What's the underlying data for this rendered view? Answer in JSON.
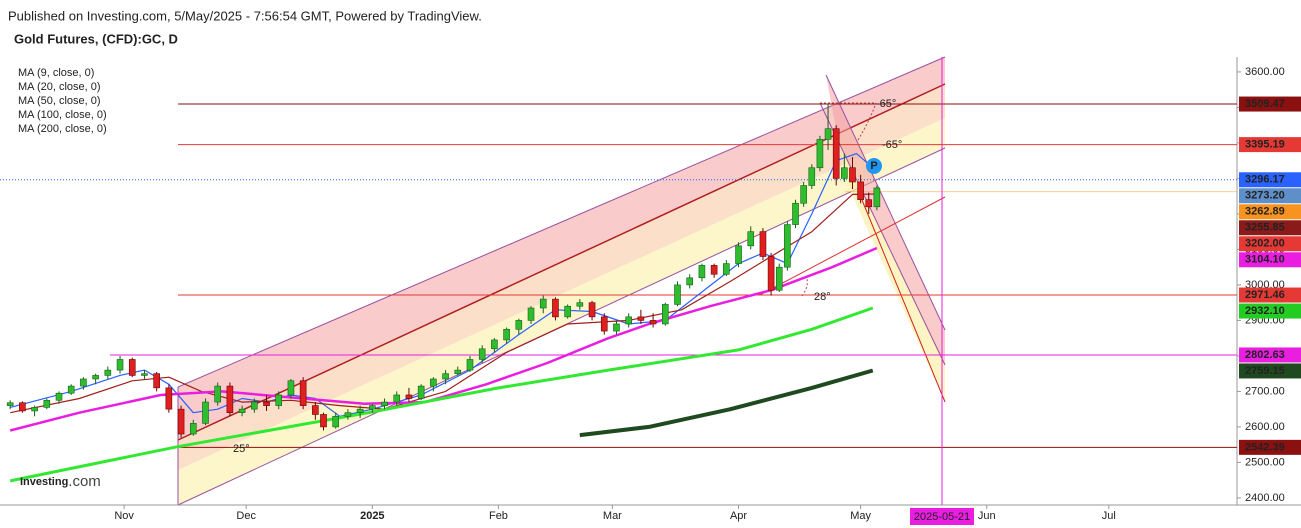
{
  "header": {
    "published": "Published on Investing.com, 5/May/2025 - 7:56:54 GMT, Powered by TradingView.",
    "instrument": "Gold Futures, (CFD):GC, D"
  },
  "chart_data": {
    "type": "candlestick",
    "xlim": [
      0.5,
      304.5
    ],
    "xticks": [
      {
        "value": 31,
        "label": "Nov"
      },
      {
        "value": 61,
        "label": "Dec"
      },
      {
        "value": 92,
        "label": "2025"
      },
      {
        "value": 123,
        "label": "Feb"
      },
      {
        "value": 151,
        "label": "Mar"
      },
      {
        "value": 182,
        "label": "Apr"
      },
      {
        "value": 212,
        "label": "May"
      },
      {
        "value": 243,
        "label": "Jun"
      },
      {
        "value": 273,
        "label": "Jul"
      }
    ],
    "ylim": [
      2380,
      3642
    ],
    "yticks": [
      {
        "value": 2400,
        "label": "2400.00"
      },
      {
        "value": 2500,
        "label": "2500.00"
      },
      {
        "value": 2600,
        "label": "2600.00"
      },
      {
        "value": 2700,
        "label": "2700.00"
      },
      {
        "value": 2800,
        "label": "2800.00"
      },
      {
        "value": 2900,
        "label": "2900.00"
      },
      {
        "value": 3000,
        "label": "3000.00"
      },
      {
        "value": 3100,
        "label": "3100.00"
      },
      {
        "value": 3200,
        "label": "3200.00"
      },
      {
        "value": 3300,
        "label": "3300.00"
      },
      {
        "value": 3400,
        "label": "3400.00"
      },
      {
        "value": 3500,
        "label": "3500.00"
      },
      {
        "value": 3600,
        "label": "3600.00"
      }
    ],
    "up_color": "#2ebd2e",
    "down_color": "#e02020",
    "candles": {
      "x": [
        3,
        6,
        9,
        12,
        15,
        18,
        21,
        24,
        27,
        30,
        33,
        36,
        39,
        42,
        45,
        48,
        51,
        54,
        57,
        60,
        63,
        66,
        69,
        72,
        75,
        78,
        80,
        83,
        86,
        89,
        92,
        95,
        98,
        101,
        104,
        107,
        110,
        113,
        116,
        119,
        122,
        125,
        128,
        131,
        134,
        137,
        140,
        143,
        146,
        149,
        152,
        155,
        158,
        161,
        164,
        167,
        170,
        173,
        176,
        179,
        182,
        185,
        188,
        190,
        192,
        194,
        196,
        198,
        200,
        202,
        204,
        206,
        208,
        210,
        212,
        214,
        216
      ],
      "open": [
        2660,
        2668,
        2645,
        2655,
        2675,
        2695,
        2715,
        2735,
        2745,
        2760,
        2790,
        2745,
        2750,
        2710,
        2650,
        2580,
        2610,
        2670,
        2715,
        2640,
        2650,
        2670,
        2660,
        2690,
        2730,
        2660,
        2635,
        2600,
        2630,
        2640,
        2650,
        2660,
        2670,
        2690,
        2680,
        2715,
        2735,
        2750,
        2760,
        2790,
        2820,
        2845,
        2875,
        2900,
        2935,
        2960,
        2910,
        2940,
        2950,
        2910,
        2870,
        2890,
        2910,
        2900,
        2890,
        2945,
        3000,
        3020,
        3055,
        3030,
        3060,
        3110,
        3150,
        3080,
        2985,
        3050,
        3170,
        3230,
        3280,
        3330,
        3410,
        3440,
        3300,
        3330,
        3290,
        3240,
        3220
      ],
      "high": [
        2675,
        2672,
        2660,
        2680,
        2700,
        2720,
        2740,
        2750,
        2770,
        2800,
        2795,
        2760,
        2755,
        2720,
        2660,
        2620,
        2680,
        2725,
        2725,
        2660,
        2680,
        2690,
        2700,
        2735,
        2740,
        2670,
        2640,
        2640,
        2650,
        2660,
        2665,
        2680,
        2700,
        2710,
        2720,
        2740,
        2760,
        2770,
        2800,
        2830,
        2850,
        2880,
        2905,
        2940,
        2970,
        2965,
        2945,
        2960,
        2955,
        2920,
        2900,
        2920,
        2930,
        2920,
        2950,
        3010,
        3030,
        3060,
        3060,
        3070,
        3120,
        3165,
        3160,
        3090,
        3060,
        3180,
        3240,
        3290,
        3340,
        3420,
        3509,
        3450,
        3370,
        3360,
        3310,
        3260,
        3280
      ],
      "low": [
        2650,
        2640,
        2630,
        2650,
        2665,
        2690,
        2705,
        2720,
        2735,
        2750,
        2740,
        2735,
        2700,
        2640,
        2570,
        2575,
        2605,
        2660,
        2630,
        2630,
        2640,
        2645,
        2650,
        2680,
        2650,
        2620,
        2590,
        2595,
        2620,
        2625,
        2640,
        2650,
        2660,
        2670,
        2675,
        2700,
        2720,
        2745,
        2755,
        2780,
        2810,
        2835,
        2860,
        2890,
        2920,
        2900,
        2905,
        2930,
        2900,
        2860,
        2860,
        2880,
        2890,
        2880,
        2885,
        2940,
        2990,
        3010,
        3020,
        3025,
        3050,
        3100,
        3070,
        2970,
        2980,
        3040,
        3160,
        3220,
        3270,
        3320,
        3380,
        3280,
        3290,
        3270,
        3230,
        3200,
        3210
      ],
      "close": [
        2668,
        2645,
        2655,
        2675,
        2695,
        2715,
        2735,
        2745,
        2760,
        2790,
        2745,
        2750,
        2710,
        2650,
        2580,
        2610,
        2670,
        2715,
        2640,
        2650,
        2670,
        2660,
        2690,
        2730,
        2660,
        2635,
        2600,
        2630,
        2640,
        2650,
        2660,
        2670,
        2690,
        2680,
        2715,
        2735,
        2750,
        2760,
        2790,
        2820,
        2845,
        2875,
        2900,
        2935,
        2960,
        2910,
        2940,
        2950,
        2910,
        2870,
        2890,
        2910,
        2900,
        2890,
        2945,
        3000,
        3020,
        3055,
        3030,
        3060,
        3110,
        3150,
        3080,
        2985,
        3050,
        3170,
        3230,
        3280,
        3330,
        3410,
        3440,
        3300,
        3330,
        3290,
        3240,
        3220,
        3273
      ]
    },
    "ma": [
      {
        "name": "MA (9, close, 0)",
        "color": "#2962ff",
        "width": 1.2,
        "x": [
          3,
          18,
          30,
          36,
          42,
          48,
          54,
          60,
          66,
          72,
          78,
          84,
          92,
          104,
          116,
          128,
          137,
          146,
          155,
          164,
          173,
          182,
          188,
          194,
          200,
          206,
          211,
          216
        ],
        "values": [
          2655,
          2700,
          2745,
          2760,
          2720,
          2640,
          2650,
          2680,
          2670,
          2690,
          2680,
          2630,
          2650,
          2690,
          2760,
          2860,
          2930,
          2925,
          2890,
          2900,
          2980,
          3060,
          3090,
          3060,
          3200,
          3350,
          3370,
          3320
        ]
      },
      {
        "name": "MA (20, close, 0)",
        "color": "#a0201a",
        "width": 1.2,
        "x": [
          3,
          20,
          33,
          42,
          50,
          60,
          72,
          84,
          95,
          110,
          125,
          140,
          155,
          168,
          180,
          190,
          200,
          210,
          216
        ],
        "values": [
          2640,
          2680,
          2730,
          2740,
          2700,
          2670,
          2675,
          2660,
          2650,
          2700,
          2810,
          2890,
          2900,
          2930,
          3010,
          3080,
          3150,
          3255,
          3256
        ]
      },
      {
        "name": "MA (50, close, 0)",
        "color": "#e91ee0",
        "width": 2.5,
        "x": [
          3,
          20,
          40,
          55,
          75,
          90,
          105,
          120,
          135,
          150,
          160,
          175,
          190,
          205,
          216
        ],
        "values": [
          2590,
          2640,
          2690,
          2700,
          2680,
          2665,
          2670,
          2720,
          2780,
          2850,
          2890,
          2940,
          2985,
          3050,
          3104
        ]
      },
      {
        "name": "MA (100, close, 0)",
        "color": "#33e833",
        "width": 3,
        "x": [
          3,
          44,
          91,
          123,
          150,
          182,
          200,
          215
        ],
        "values": [
          2448,
          2544,
          2640,
          2710,
          2760,
          2817,
          2875,
          2935
        ]
      },
      {
        "name": "MA (200, close, 0)",
        "color": "#1f4a1f",
        "width": 4,
        "x": [
          143,
          160,
          180,
          200,
          215
        ],
        "values": [
          2577,
          2600,
          2650,
          2710,
          2759
        ]
      }
    ],
    "price_labels": [
      {
        "value": 3509.47,
        "label": "3509.47",
        "color": "#8b1010",
        "line": "solid"
      },
      {
        "value": 3395.19,
        "label": "3395.19",
        "color": "#e53935",
        "line": "solid"
      },
      {
        "value": 3296.17,
        "label": "3296.17",
        "color": "#2962ff",
        "line": "dotted"
      },
      {
        "value": 3273.2,
        "label": "3273.20",
        "color": "#5f8fc8",
        "line": "none"
      },
      {
        "value": 3262.89,
        "label": "3262.89",
        "color": "#f7931e",
        "line": "pale"
      },
      {
        "value": 3255.85,
        "label": "3255.85",
        "color": "#8b1a1a",
        "line": "none"
      },
      {
        "value": 3202,
        "label": "3202.00",
        "color": "#e53935",
        "line": "none"
      },
      {
        "value": 3104.1,
        "label": "3104.10",
        "color": "#e91ee0",
        "line": "none"
      },
      {
        "value": 2971.46,
        "label": "2971.46",
        "color": "#e53935",
        "line": "solid"
      },
      {
        "value": 2932.1,
        "label": "2932.10",
        "color": "#22cc22",
        "line": "none"
      },
      {
        "value": 2802.63,
        "label": "2802.63",
        "color": "#e91ee0",
        "line": "solid"
      },
      {
        "value": 2759.15,
        "label": "2759.15",
        "color": "#1f4a1f",
        "line": "none"
      },
      {
        "value": 2542.39,
        "label": "2542.39",
        "color": "#8b1010",
        "line": "solid"
      }
    ],
    "cursor_x": {
      "value": 232,
      "label": "2025-05-21"
    },
    "annotations": [
      "-65°",
      "-65°",
      "28°",
      "25°"
    ],
    "marker": "P",
    "watermark": {
      "brand": "Investing",
      "suffix": ".com"
    }
  }
}
